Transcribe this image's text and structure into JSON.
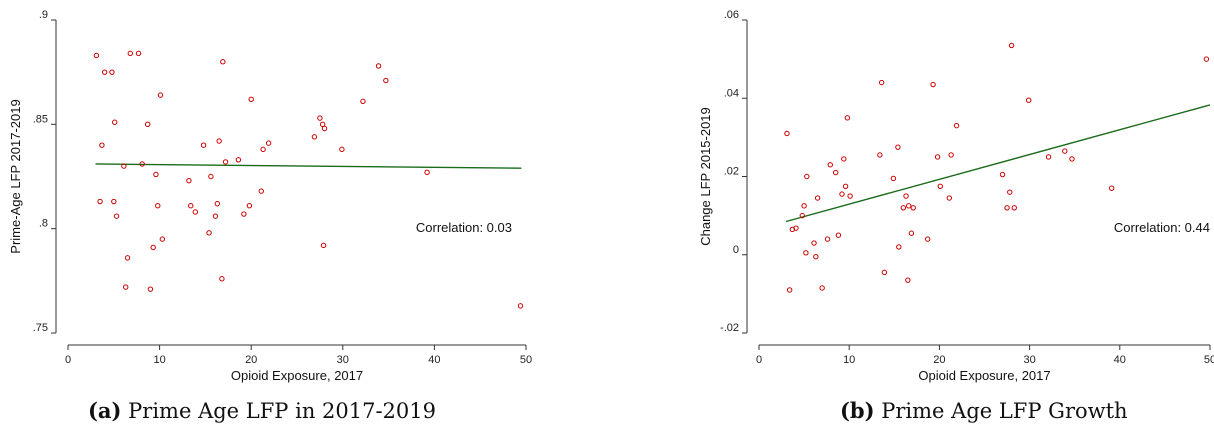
{
  "chart_data": [
    {
      "type": "scatter",
      "xlabel": "Opioid Exposure, 2017",
      "ylabel": "Prime-Age LFP 2017-2019",
      "xlim": [
        0,
        50
      ],
      "ylim": [
        0.75,
        0.9
      ],
      "x_ticks": [
        0,
        10,
        20,
        30,
        40,
        50
      ],
      "x_tick_labels": [
        "0",
        "10",
        "20",
        "30",
        "40",
        "50"
      ],
      "y_ticks": [
        0.75,
        0.8,
        0.85,
        0.9
      ],
      "y_tick_labels": [
        ".75",
        ".8",
        ".85",
        ".9"
      ],
      "grid": false,
      "marker_color": "#cc0000",
      "fit_color": "#1a6b1a",
      "fit_line": {
        "x": [
          3,
          49.5
        ],
        "y": [
          0.831,
          0.829
        ]
      },
      "annotation": "Correlation: 0.03",
      "caption_label": "(a)",
      "caption_text": "Prime Age LFP in 2017-2019",
      "points": [
        [
          3.1,
          0.883
        ],
        [
          3.5,
          0.813
        ],
        [
          3.7,
          0.84
        ],
        [
          4.0,
          0.875
        ],
        [
          4.8,
          0.875
        ],
        [
          5.0,
          0.813
        ],
        [
          5.1,
          0.851
        ],
        [
          5.3,
          0.806
        ],
        [
          6.1,
          0.83
        ],
        [
          6.3,
          0.772
        ],
        [
          6.5,
          0.786
        ],
        [
          6.8,
          0.884
        ],
        [
          7.7,
          0.884
        ],
        [
          8.1,
          0.831
        ],
        [
          8.7,
          0.85
        ],
        [
          9.0,
          0.771
        ],
        [
          9.3,
          0.791
        ],
        [
          9.6,
          0.826
        ],
        [
          9.8,
          0.811
        ],
        [
          10.1,
          0.864
        ],
        [
          10.3,
          0.795
        ],
        [
          13.2,
          0.823
        ],
        [
          13.4,
          0.811
        ],
        [
          13.9,
          0.808
        ],
        [
          14.8,
          0.84
        ],
        [
          15.4,
          0.798
        ],
        [
          15.6,
          0.825
        ],
        [
          16.1,
          0.806
        ],
        [
          16.3,
          0.812
        ],
        [
          16.5,
          0.842
        ],
        [
          16.8,
          0.776
        ],
        [
          16.9,
          0.88
        ],
        [
          17.2,
          0.832
        ],
        [
          18.6,
          0.833
        ],
        [
          19.2,
          0.807
        ],
        [
          19.8,
          0.811
        ],
        [
          20.0,
          0.862
        ],
        [
          21.1,
          0.818
        ],
        [
          21.3,
          0.838
        ],
        [
          21.9,
          0.841
        ],
        [
          26.9,
          0.844
        ],
        [
          27.5,
          0.853
        ],
        [
          27.8,
          0.85
        ],
        [
          27.9,
          0.792
        ],
        [
          28.0,
          0.848
        ],
        [
          29.9,
          0.838
        ],
        [
          32.2,
          0.861
        ],
        [
          33.9,
          0.878
        ],
        [
          34.7,
          0.871
        ],
        [
          39.2,
          0.827
        ],
        [
          49.4,
          0.763
        ]
      ]
    },
    {
      "type": "scatter",
      "xlabel": "Opioid Exposure, 2017",
      "ylabel": "Change LFP 2015-2019",
      "xlim": [
        0,
        50
      ],
      "ylim": [
        -0.02,
        0.06
      ],
      "x_ticks": [
        0,
        10,
        20,
        30,
        40,
        50
      ],
      "x_tick_labels": [
        "0",
        "10",
        "20",
        "30",
        "40",
        "50"
      ],
      "y_ticks": [
        -0.02,
        0,
        0.02,
        0.04,
        0.06
      ],
      "y_tick_labels": [
        "-.02",
        "0",
        ".02",
        ".04",
        ".06"
      ],
      "grid": false,
      "marker_color": "#cc0000",
      "fit_color": "#1a6b1a",
      "fit_line": {
        "x": [
          3,
          50
        ],
        "y": [
          0.0085,
          0.0383
        ]
      },
      "annotation": "Correlation: 0.44",
      "caption_label": "(b)",
      "caption_text": "Prime Age LFP Growth",
      "points": [
        [
          3.1,
          0.031
        ],
        [
          3.4,
          -0.009
        ],
        [
          3.7,
          0.0065
        ],
        [
          4.1,
          0.0068
        ],
        [
          4.8,
          0.01
        ],
        [
          5.0,
          0.0125
        ],
        [
          5.2,
          0.0005
        ],
        [
          5.3,
          0.02
        ],
        [
          6.1,
          0.003
        ],
        [
          6.3,
          -0.0005
        ],
        [
          6.5,
          0.0145
        ],
        [
          7.0,
          -0.0085
        ],
        [
          7.6,
          0.004
        ],
        [
          7.9,
          0.023
        ],
        [
          8.5,
          0.021
        ],
        [
          8.8,
          0.005
        ],
        [
          9.2,
          0.0155
        ],
        [
          9.4,
          0.0245
        ],
        [
          9.6,
          0.0175
        ],
        [
          9.8,
          0.035
        ],
        [
          10.1,
          0.015
        ],
        [
          13.4,
          0.0255
        ],
        [
          13.6,
          0.044
        ],
        [
          13.9,
          -0.0045
        ],
        [
          14.9,
          0.0195
        ],
        [
          15.4,
          0.0275
        ],
        [
          15.5,
          0.002
        ],
        [
          16.0,
          0.012
        ],
        [
          16.3,
          0.015
        ],
        [
          16.5,
          -0.0065
        ],
        [
          16.6,
          0.0125
        ],
        [
          16.9,
          0.0055
        ],
        [
          17.1,
          0.012
        ],
        [
          18.7,
          0.004
        ],
        [
          19.3,
          0.0435
        ],
        [
          19.8,
          0.025
        ],
        [
          20.1,
          0.0175
        ],
        [
          21.1,
          0.0145
        ],
        [
          21.3,
          0.0255
        ],
        [
          21.9,
          0.033
        ],
        [
          27.0,
          0.0205
        ],
        [
          27.5,
          0.012
        ],
        [
          27.8,
          0.016
        ],
        [
          28.0,
          0.0535
        ],
        [
          28.3,
          0.012
        ],
        [
          29.9,
          0.0395
        ],
        [
          32.1,
          0.025
        ],
        [
          33.9,
          0.0265
        ],
        [
          34.7,
          0.0245
        ],
        [
          39.1,
          0.017
        ],
        [
          49.6,
          0.05
        ]
      ]
    }
  ]
}
